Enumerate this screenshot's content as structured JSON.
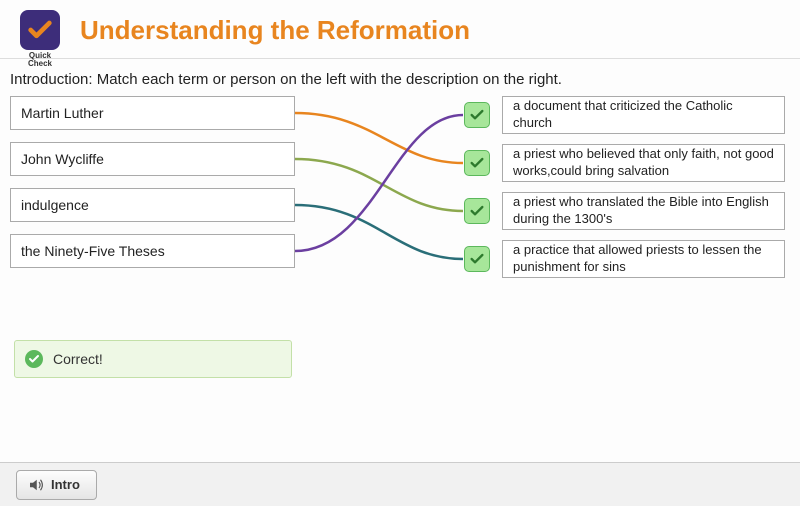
{
  "header": {
    "logo_text": "Quick\nCheck",
    "title": "Understanding the Reformation"
  },
  "instruction": "Introduction: Match each term or person on the left with the description on the right.",
  "terms": [
    "Martin Luther",
    "John Wycliffe",
    "indulgence",
    "the Ninety-Five Theses"
  ],
  "descriptions": [
    "a document that criticized the Catholic church",
    "a priest who believed that only faith, not good works,could bring salvation",
    "a priest who translated the Bible into English during the 1300's",
    "a practice that allowed priests to lessen the punishment for sins"
  ],
  "connections": [
    {
      "from": 0,
      "to": 1,
      "color": "#e8851f"
    },
    {
      "from": 1,
      "to": 2,
      "color": "#8ca84e"
    },
    {
      "from": 2,
      "to": 3,
      "color": "#2a6e78"
    },
    {
      "from": 3,
      "to": 0,
      "color": "#6b3fa0"
    }
  ],
  "feedback": {
    "text": "Correct!",
    "bg": "#eef8e5",
    "border": "#c3e0a8",
    "icon_color": "#5cb85c"
  },
  "footer": {
    "intro_label": "Intro"
  },
  "colors": {
    "title": "#e8851f",
    "logo_bg": "#3d2d7a",
    "check_bg": "#a7e69a",
    "check_border": "#5cb85c"
  }
}
